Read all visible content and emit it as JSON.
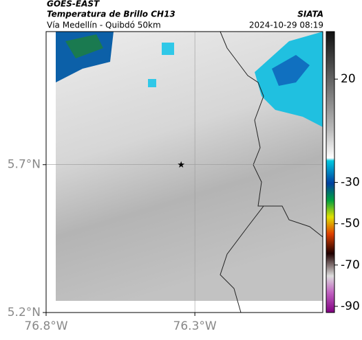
{
  "header": {
    "source": "GOES-EAST",
    "product": "Temperatura de Brillo CH13",
    "region": "Vía Medellín - Quibdó 50km",
    "agency": "SIATA",
    "timestamp": "2024-10-29 08:19"
  },
  "map": {
    "xlim": [
      -76.8,
      -75.87
    ],
    "ylim": [
      5.2,
      6.15
    ],
    "xticks": [
      {
        "value": -76.8,
        "label": "76.8°W"
      },
      {
        "value": -76.3,
        "label": "76.3°W"
      }
    ],
    "yticks": [
      {
        "value": 5.2,
        "label": "5.2°N"
      },
      {
        "value": 5.7,
        "label": "5.7°N"
      }
    ],
    "grid": true,
    "marker": {
      "lon": -76.346,
      "lat": 5.7
    }
  },
  "colorbar": {
    "clim": [
      -93,
      43
    ],
    "ticks": [
      20,
      -30,
      -50,
      -70,
      -90
    ]
  }
}
